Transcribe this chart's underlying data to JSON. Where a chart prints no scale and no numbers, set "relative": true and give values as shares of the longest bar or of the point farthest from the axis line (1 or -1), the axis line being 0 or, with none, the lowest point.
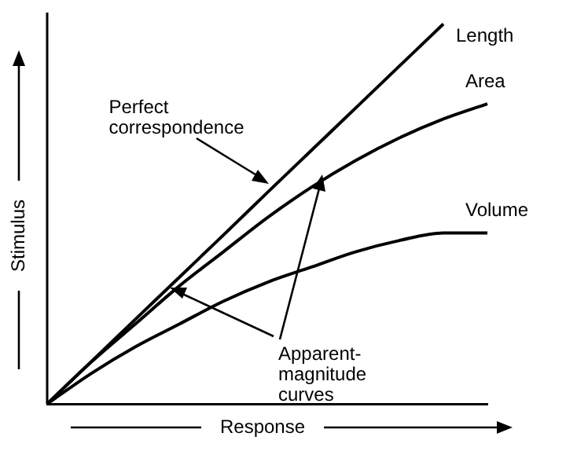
{
  "chart_data": {
    "type": "line",
    "relative": true,
    "xlabel": "Response",
    "ylabel": "Stimulus",
    "categories": [
      null,
      null,
      null,
      null,
      null,
      null,
      null,
      null,
      null,
      null,
      null
    ],
    "series": [
      {
        "name": "Length",
        "color": "#000000",
        "values": [
          0,
          0.111,
          0.222,
          0.333,
          0.444,
          0.556,
          0.667,
          0.778,
          0.889,
          1,
          null
        ]
      },
      {
        "name": "Area",
        "color": "#000000",
        "values": [
          0,
          0.11,
          0.21,
          0.31,
          0.4,
          0.49,
          0.57,
          0.64,
          0.7,
          0.75,
          0.79
        ]
      },
      {
        "name": "Volume",
        "color": "#000000",
        "values": [
          0,
          0.08,
          0.15,
          0.21,
          0.27,
          0.32,
          0.36,
          0.4,
          0.43,
          0.45,
          0.45
        ]
      }
    ],
    "annotations": [
      "Perfect correspondence",
      "Apparent-magnitude curves"
    ],
    "grid": false,
    "legend": false,
    "marker": "none",
    "line_style": "solid"
  }
}
